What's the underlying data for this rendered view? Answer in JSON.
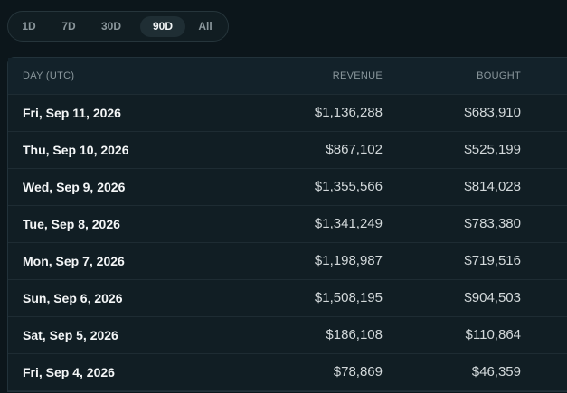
{
  "tabs": {
    "items": [
      "1D",
      "7D",
      "30D",
      "90D",
      "All"
    ],
    "active": 3
  },
  "table": {
    "columns": [
      "DAY (UTC)",
      "REVENUE",
      "BOUGHT"
    ],
    "rows": [
      [
        "Fri, Sep 11, 2026",
        "$1,136,288",
        "$683,910"
      ],
      [
        "Thu, Sep 10, 2026",
        "$867,102",
        "$525,199"
      ],
      [
        "Wed, Sep 9, 2026",
        "$1,355,566",
        "$814,028"
      ],
      [
        "Tue, Sep 8, 2026",
        "$1,341,249",
        "$783,380"
      ],
      [
        "Mon, Sep 7, 2026",
        "$1,198,987",
        "$719,516"
      ],
      [
        "Sun, Sep 6, 2026",
        "$1,508,195",
        "$904,503"
      ],
      [
        "Sat, Sep 5, 2026",
        "$186,108",
        "$110,864"
      ],
      [
        "Fri, Sep 4, 2026",
        "$78,869",
        "$46,359"
      ]
    ]
  }
}
